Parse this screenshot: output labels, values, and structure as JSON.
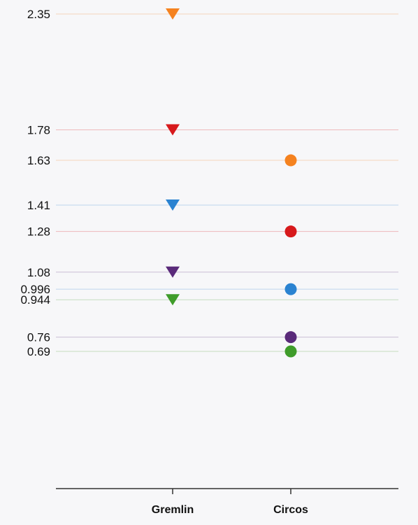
{
  "chart_data": {
    "type": "scatter",
    "title": "",
    "xlabel": "",
    "ylabel": "",
    "categories": [
      "Gremlin",
      "Circos"
    ],
    "y_ticks": [
      "2.35",
      "1.78",
      "1.63",
      "1.41",
      "1.28",
      "1.08",
      "0.996",
      "0.944",
      "0.76",
      "0.69"
    ],
    "grid": true,
    "legend": "none",
    "points": [
      {
        "category": "Gremlin",
        "value": 2.35,
        "marker": "triangle-down",
        "color": "#f5821f"
      },
      {
        "category": "Gremlin",
        "value": 1.78,
        "marker": "triangle-down",
        "color": "#d7191c"
      },
      {
        "category": "Gremlin",
        "value": 1.41,
        "marker": "triangle-down",
        "color": "#2b83d1"
      },
      {
        "category": "Gremlin",
        "value": 1.08,
        "marker": "triangle-down",
        "color": "#5a2a7a"
      },
      {
        "category": "Gremlin",
        "value": 0.944,
        "marker": "triangle-down",
        "color": "#3f9c2a"
      },
      {
        "category": "Circos",
        "value": 1.63,
        "marker": "circle",
        "color": "#f5821f"
      },
      {
        "category": "Circos",
        "value": 1.28,
        "marker": "circle",
        "color": "#d7191c"
      },
      {
        "category": "Circos",
        "value": 0.996,
        "marker": "circle",
        "color": "#2b83d1"
      },
      {
        "category": "Circos",
        "value": 0.76,
        "marker": "circle",
        "color": "#5a2a7a"
      },
      {
        "category": "Circos",
        "value": 0.69,
        "marker": "circle",
        "color": "#3f9c2a"
      }
    ]
  }
}
